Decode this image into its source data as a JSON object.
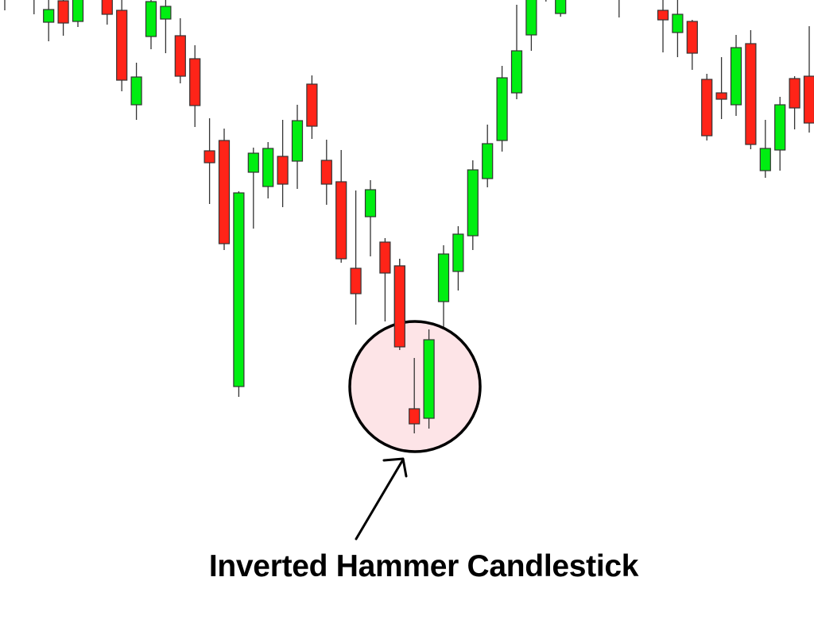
{
  "chart_data": {
    "type": "candlestick",
    "title": "",
    "xlabel": "",
    "ylabel": "",
    "grid": false,
    "axes_visible": false,
    "colors": {
      "up": "#00ee11",
      "down": "#ff2418",
      "outline": "#333333",
      "highlight_fill": "#fde4e7",
      "highlight_stroke": "#000000"
    },
    "candles": [
      {
        "t": 0,
        "o": 810,
        "h": 830,
        "l": 787,
        "c": 815
      },
      {
        "t": 2,
        "o": 810,
        "h": 830,
        "l": 782,
        "c": 815
      },
      {
        "t": 3,
        "o": 772,
        "h": 800,
        "l": 748,
        "c": 788
      },
      {
        "t": 4,
        "o": 799,
        "h": 805,
        "l": 755,
        "c": 771
      },
      {
        "t": 5,
        "o": 773,
        "h": 815,
        "l": 766,
        "c": 810
      },
      {
        "t": 7,
        "o": 810,
        "h": 815,
        "l": 769,
        "c": 782
      },
      {
        "t": 8,
        "o": 787,
        "h": 800,
        "l": 685,
        "c": 699
      },
      {
        "t": 9,
        "o": 668,
        "h": 721,
        "l": 649,
        "c": 703
      },
      {
        "t": 10,
        "o": 754,
        "h": 805,
        "l": 738,
        "c": 798
      },
      {
        "t": 11,
        "o": 776,
        "h": 805,
        "l": 733,
        "c": 792
      },
      {
        "t": 12,
        "o": 755,
        "h": 777,
        "l": 695,
        "c": 704
      },
      {
        "t": 13,
        "o": 726,
        "h": 743,
        "l": 640,
        "c": 667
      },
      {
        "t": 14,
        "o": 610,
        "h": 651,
        "l": 543,
        "c": 595
      },
      {
        "t": 15,
        "o": 623,
        "h": 638,
        "l": 485,
        "c": 493
      },
      {
        "t": 16,
        "o": 313,
        "h": 559,
        "l": 300,
        "c": 557
      },
      {
        "t": 17,
        "o": 583,
        "h": 614,
        "l": 512,
        "c": 607
      },
      {
        "t": 18,
        "o": 565,
        "h": 621,
        "l": 550,
        "c": 613
      },
      {
        "t": 19,
        "o": 603,
        "h": 649,
        "l": 539,
        "c": 568
      },
      {
        "t": 20,
        "o": 597,
        "h": 668,
        "l": 562,
        "c": 648
      },
      {
        "t": 21,
        "o": 694,
        "h": 705,
        "l": 625,
        "c": 641
      },
      {
        "t": 22,
        "o": 598,
        "h": 624,
        "l": 542,
        "c": 568
      },
      {
        "t": 23,
        "o": 571,
        "h": 611,
        "l": 469,
        "c": 474
      },
      {
        "t": 24,
        "o": 462,
        "h": 560,
        "l": 391,
        "c": 430
      },
      {
        "t": 25,
        "o": 527,
        "h": 573,
        "l": 477,
        "c": 561
      },
      {
        "t": 26,
        "o": 495,
        "h": 500,
        "l": 395,
        "c": 456
      },
      {
        "t": 27,
        "o": 465,
        "h": 474,
        "l": 359,
        "c": 363
      },
      {
        "t": 28,
        "o": 285,
        "h": 349,
        "l": 254,
        "c": 266
      },
      {
        "t": 29,
        "o": 273,
        "h": 385,
        "l": 260,
        "c": 372
      },
      {
        "t": 30,
        "o": 420,
        "h": 491,
        "l": 358,
        "c": 480
      },
      {
        "t": 31,
        "o": 458,
        "h": 515,
        "l": 434,
        "c": 505
      },
      {
        "t": 32,
        "o": 503,
        "h": 598,
        "l": 485,
        "c": 586
      },
      {
        "t": 33,
        "o": 575,
        "h": 643,
        "l": 564,
        "c": 619
      },
      {
        "t": 34,
        "o": 623,
        "h": 717,
        "l": 609,
        "c": 702
      },
      {
        "t": 35,
        "o": 683,
        "h": 794,
        "l": 675,
        "c": 736
      },
      {
        "t": 36,
        "o": 756,
        "h": 815,
        "l": 736,
        "c": 810
      },
      {
        "t": 37,
        "o": 815,
        "h": 830,
        "l": 798,
        "c": 820
      },
      {
        "t": 38,
        "o": 783,
        "h": 815,
        "l": 779,
        "c": 810
      },
      {
        "t": 42,
        "o": 815,
        "h": 830,
        "l": 778,
        "c": 820
      },
      {
        "t": 45,
        "o": 787,
        "h": 805,
        "l": 734,
        "c": 775
      },
      {
        "t": 46,
        "o": 759,
        "h": 805,
        "l": 728,
        "c": 782
      },
      {
        "t": 47,
        "o": 773,
        "h": 775,
        "l": 712,
        "c": 733
      },
      {
        "t": 48,
        "o": 700,
        "h": 707,
        "l": 623,
        "c": 629
      },
      {
        "t": 49,
        "o": 683,
        "h": 728,
        "l": 650,
        "c": 675
      },
      {
        "t": 50,
        "o": 668,
        "h": 756,
        "l": 654,
        "c": 740
      },
      {
        "t": 51,
        "o": 745,
        "h": 762,
        "l": 612,
        "c": 618
      },
      {
        "t": 52,
        "o": 585,
        "h": 649,
        "l": 576,
        "c": 613
      },
      {
        "t": 53,
        "o": 611,
        "h": 678,
        "l": 585,
        "c": 668
      },
      {
        "t": 54,
        "o": 701,
        "h": 704,
        "l": 637,
        "c": 664
      },
      {
        "t": 55,
        "o": 704,
        "h": 767,
        "l": 633,
        "c": 645
      }
    ],
    "highlighted_candles": [
      28,
      29
    ],
    "annotation": "Inverted Hammer Candlestick"
  }
}
